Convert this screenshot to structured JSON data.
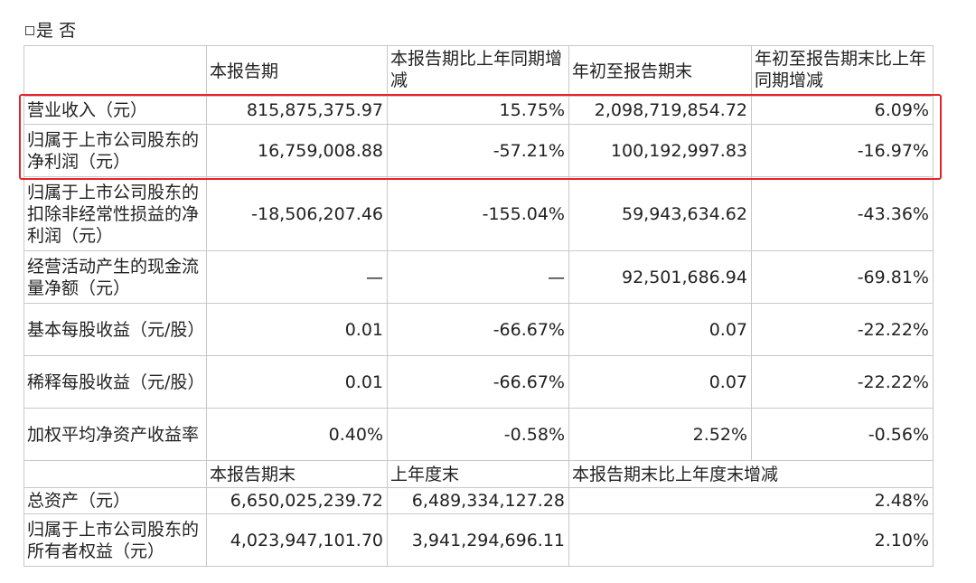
{
  "checkline": {
    "yes": "是",
    "no": "否"
  },
  "header": {
    "blank": "",
    "c1": "本报告期",
    "c2": "本报告期比上年同期增减",
    "c3": "年初至报告期末",
    "c4": "年初至报告期末比上年同期增减"
  },
  "rows": [
    {
      "label": "营业收入（元）",
      "v1": "815,875,375.97",
      "v2": "15.75%",
      "v3": "2,098,719,854.72",
      "v4": "6.09%"
    },
    {
      "label": "归属于上市公司股东的净利润（元）",
      "v1": "16,759,008.88",
      "v2": "-57.21%",
      "v3": "100,192,997.83",
      "v4": "-16.97%"
    },
    {
      "label": "归属于上市公司股东的扣除非经常性损益的净利润（元）",
      "v1": "-18,506,207.46",
      "v2": "-155.04%",
      "v3": "59,943,634.62",
      "v4": "-43.36%"
    },
    {
      "label": "经营活动产生的现金流量净额（元）",
      "v1": "—",
      "v2": "—",
      "v3": "92,501,686.94",
      "v4": "-69.81%"
    },
    {
      "label": "基本每股收益（元/股）",
      "v1": "0.01",
      "v2": "-66.67%",
      "v3": "0.07",
      "v4": "-22.22%"
    },
    {
      "label": "稀释每股收益（元/股）",
      "v1": "0.01",
      "v2": "-66.67%",
      "v3": "0.07",
      "v4": "-22.22%"
    },
    {
      "label": "加权平均净资产收益率",
      "v1": "0.40%",
      "v2": "-0.58%",
      "v3": "2.52%",
      "v4": "-0.56%"
    }
  ],
  "header2": {
    "c1": "本报告期末",
    "c2": "上年度末",
    "c3": "本报告期末比上年度末增减"
  },
  "rows2": [
    {
      "label": "总资产（元）",
      "v1": "6,650,025,239.72",
      "v2": "6,489,334,127.28",
      "v3": "2.48%"
    },
    {
      "label": "归属于上市公司股东的所有者权益（元）",
      "v1": "4,023,947,101.70",
      "v2": "3,941,294,696.11",
      "v3": "2.10%"
    }
  ]
}
